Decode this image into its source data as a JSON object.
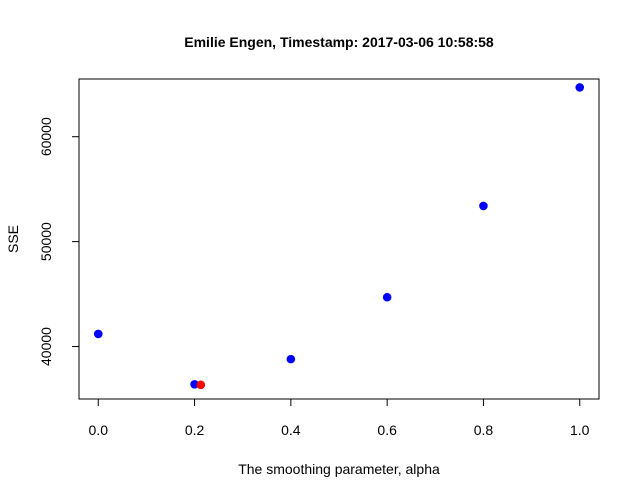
{
  "chart_data": {
    "type": "scatter",
    "title": "Emilie Engen, Timestamp: 2017-03-06 10:58:58",
    "xlabel": "The smoothing parameter, alpha",
    "ylabel": "SSE",
    "xlim": [
      -0.04,
      1.04
    ],
    "ylim": [
      35000,
      65500
    ],
    "xticks": [
      "0.0",
      "0.2",
      "0.4",
      "0.6",
      "0.8",
      "1.0"
    ],
    "xtick_values": [
      0.0,
      0.2,
      0.4,
      0.6,
      0.8,
      1.0
    ],
    "yticks": [
      "40000",
      "50000",
      "60000"
    ],
    "ytick_values": [
      40000,
      50000,
      60000
    ],
    "grid": false,
    "series": [
      {
        "color": "#0000ff",
        "x": [
          0.0,
          0.2,
          0.4,
          0.6,
          0.8,
          1.0
        ],
        "y": [
          41200,
          36400,
          38800,
          44700,
          53400,
          64700
        ]
      },
      {
        "color": "#ff0000",
        "x": [
          0.213
        ],
        "y": [
          36350
        ]
      }
    ]
  }
}
